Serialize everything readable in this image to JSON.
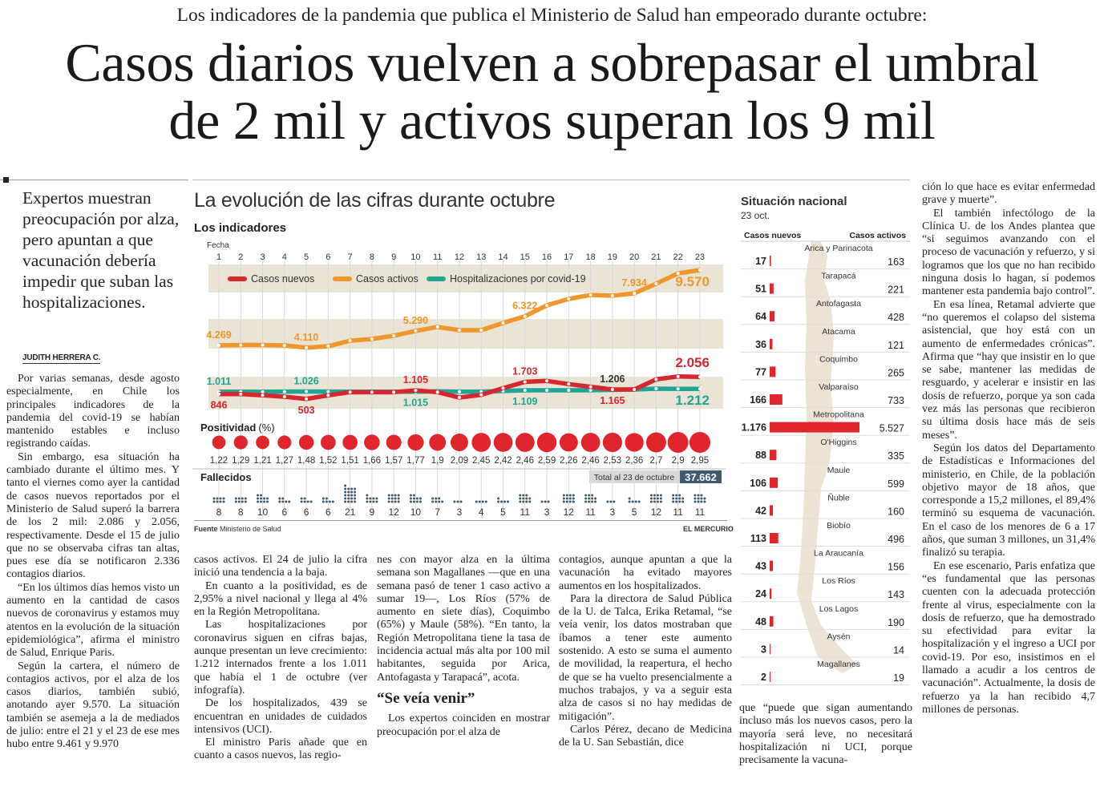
{
  "header": {
    "supertitle": "Los indicadores de la pandemia que publica el Ministerio de Salud han empeorado durante octubre:",
    "title_line1": "Casos diarios vuelven a sobrepasar el umbral",
    "title_line2": "de 2 mil y activos superan los 9 mil"
  },
  "deck": "Expertos muestran preocupación por alza, pero apuntan a que vacunación debería impedir que suban las hospitalizaciones.",
  "byline": "JUDITH HERRERA C.",
  "columns": [
    {
      "items": [
        {
          "type": "p",
          "text": "Por varias semanas, desde agosto especialmente, en Chile los principales indicadores de la pandemia del covid-19 se habían mantenido estables e incluso registrando caídas."
        },
        {
          "type": "p",
          "text": "Sin embargo, esa situación ha cambiado durante el último mes. Y tanto el viernes como ayer la cantidad de casos nuevos reportados por el Ministerio de Salud superó la barrera de los 2 mil: 2.086 y 2.056, respectivamente. Desde el 15 de julio que no se observaba cifras tan altas, pues ese día se notificaron 2.336 contagios diarios."
        },
        {
          "type": "p",
          "text": "“En los últimos días hemos visto un aumento en la cantidad de casos nuevos de coronavirus y estamos muy atentos en la evolución de la situación epidemiológica”, afirma el ministro de Salud, Enrique Paris."
        },
        {
          "type": "p",
          "text": "Según la cartera, el número de contagios activos, por el alza de los casos diarios, también subió, anotando ayer 9.570. La situación también se asemeja a la de mediados de julio: entre el 21 y el 23 de ese mes hubo entre 9.461 y 9.970"
        }
      ]
    },
    {
      "items": [
        {
          "type": "cont",
          "text": "casos activos. El 24 de julio la cifra inició una tendencia a la baja."
        },
        {
          "type": "p",
          "text": "En cuanto a la positividad, es de 2,95% a nivel nacional y llega al 4% en la Región Metropolitana."
        },
        {
          "type": "p",
          "text": "Las hospitalizaciones por coronavirus siguen en cifras bajas, aunque presentan un leve crecimiento: 1.212 internados frente a los 1.011 que había el 1 de octubre (ver infografía)."
        },
        {
          "type": "p",
          "text": "De los hospitalizados, 439 se encuentran en unidades de cuidados intensivos (UCI)."
        },
        {
          "type": "p",
          "text": "El ministro Paris añade que en cuanto a casos nuevos, las regio-"
        }
      ]
    },
    {
      "items": [
        {
          "type": "cont",
          "text": "nes con mayor alza en la última semana son Magallanes —que en una semana pasó de tener 1 caso activo a sumar 19—, Los Ríos (57% de aumento en siete días), Coquimbo (65%) y Maule (58%). “En tanto, la Región Metropolitana tiene la tasa de incidencia actual más alta por 100 mil habitantes, seguida por Arica, Antofagasta y Tarapacá”, acota."
        },
        {
          "type": "h",
          "text": "“Se veía venir”"
        },
        {
          "type": "p",
          "text": "Los expertos coinciden en mostrar preocupación por el alza de"
        }
      ]
    },
    {
      "items": [
        {
          "type": "cont",
          "text": "contagios, aunque apuntan a que la vacunación ha evitado mayores aumentos en los hospitalizados."
        },
        {
          "type": "p",
          "text": "Para la directora de Salud Pública de la U. de Talca, Erika Retamal, “se veía venir, los datos mostraban que íbamos a tener este aumento sostenido. A esto se suma el aumento de movilidad, la reapertura, el hecho de que se ha vuelto presencialmente a muchos trabajos, y va a seguir esta alza de casos si no hay medidas de mitigación”."
        },
        {
          "type": "p",
          "text": "Carlos Pérez, decano de Medicina de la U. San Sebastián, dice"
        }
      ]
    },
    {
      "items": [
        {
          "type": "cont",
          "text": "que “puede que sigan aumentando incluso más los nuevos casos, pero la mayoría será leve, no necesitará hospitalización ni UCI, porque precisamente la vacuna-"
        }
      ]
    },
    {
      "items": [
        {
          "type": "cont",
          "text": "ción lo que hace es evitar enfermedad grave y muerte”."
        },
        {
          "type": "p",
          "text": "El también infectólogo de la Clínica U. de los Andes plantea que “si seguimos avanzando con el proceso de vacunación y refuerzo, y si logramos que los que no han recibido ninguna dosis lo hagan, sí podemos mantener esta pandemia bajo control”."
        },
        {
          "type": "p",
          "text": "En esa línea, Retamal advierte que “no queremos el colapso del sistema asistencial, que hoy está con un aumento de enfermedades crónicas”. Afirma que “hay que insistir en lo que se sabe, mantener las medidas de resguardo, y acelerar e insistir en las dosis de refuerzo, porque ya son cada vez más las personas que recibieron su última dosis hace más de seis meses”."
        },
        {
          "type": "p",
          "text": "Según los datos del Departamento de Estadísticas e Informaciones del ministerio, en Chile, de la población objetivo mayor de 18 años, que corresponde a 15,2 millones, el 89,4% terminó su esquema de vacunación. En el caso de los menores de 6 a 17 años, que suman 3 millones, un 31,4% finalizó su terapia."
        },
        {
          "type": "p",
          "text": "En ese escenario, Paris enfatiza que “es fundamental que las personas cuenten con la adecuada protección frente al virus, especialmente con la dosis de refuerzo, que ha demostrado su efectividad para evitar la hospitalización y el ingreso a UCI por covid-19. Por eso, insistimos en el llamado a acudir a los centros de vacunación”. Actualmente, la dosis de refuerzo ya la han recibido 4,7 millones de personas."
        }
      ]
    }
  ],
  "chart_data": [
    {
      "type": "line",
      "title": "La evolución de las cifras durante octubre",
      "subtitle": "Los indicadores",
      "xlabel": "Fecha",
      "x": [
        1,
        2,
        3,
        4,
        5,
        6,
        7,
        8,
        9,
        10,
        11,
        12,
        13,
        14,
        15,
        16,
        17,
        18,
        19,
        20,
        21,
        22,
        23
      ],
      "legend_position": "top",
      "series": [
        {
          "name": "Casos nuevos",
          "color": "#d7262e",
          "values": [
            846,
            846,
            755,
            660,
            503,
            755,
            980,
            980,
            980,
            1105,
            980,
            600,
            790,
            1260,
            1703,
            1770,
            1545,
            1355,
            1165,
            1170,
            1880,
            2086,
            2056
          ]
        },
        {
          "name": "Casos activos",
          "color": "#f0962a",
          "values": [
            4269,
            4300,
            4300,
            4269,
            4110,
            4210,
            4600,
            4720,
            4950,
            5290,
            5570,
            5340,
            5340,
            5850,
            6322,
            7090,
            7540,
            7820,
            7770,
            7934,
            8610,
            9340,
            9570
          ]
        },
        {
          "name": "Hospitalizaciones por covid-19",
          "color": "#1ea594",
          "values": [
            1011,
            1010,
            1005,
            1020,
            1026,
            1020,
            1010,
            1010,
            1010,
            1015,
            1040,
            1015,
            1015,
            1060,
            1109,
            1110,
            1110,
            1115,
            1140,
            1165,
            1220,
            1210,
            1212
          ]
        }
      ],
      "annotations": [
        {
          "day": 1,
          "text": "4.269",
          "series": "Casos activos",
          "place": "above",
          "color": "#f0962a"
        },
        {
          "day": 5,
          "text": "4.110",
          "series": "Casos activos",
          "place": "above",
          "color": "#f0962a"
        },
        {
          "day": 10,
          "text": "5.290",
          "series": "Casos activos",
          "place": "above",
          "color": "#f0962a"
        },
        {
          "day": 15,
          "text": "6.322",
          "series": "Casos activos",
          "place": "above",
          "color": "#f0962a"
        },
        {
          "day": 20,
          "text": "7.934",
          "series": "Casos activos",
          "place": "above",
          "color": "#f0962a"
        },
        {
          "day": 23,
          "text": "9.570",
          "series": "Casos activos",
          "place": "below",
          "color": "#f0962a",
          "big": true
        },
        {
          "day": 1,
          "text": "1.011",
          "series": "Hospitalizaciones por covid-19",
          "place": "above",
          "color": "#1ea594"
        },
        {
          "day": 5,
          "text": "1.026",
          "series": "Hospitalizaciones por covid-19",
          "place": "above",
          "color": "#1ea594"
        },
        {
          "day": 10,
          "text": "1.015",
          "series": "Hospitalizaciones por covid-19",
          "place": "below",
          "color": "#1ea594"
        },
        {
          "day": 15,
          "text": "1.109",
          "series": "Hospitalizaciones por covid-19",
          "place": "below",
          "color": "#1ea594"
        },
        {
          "day": 23,
          "text": "1.212",
          "series": "Hospitalizaciones por covid-19",
          "place": "below",
          "color": "#1ea594",
          "big": true
        },
        {
          "day": 1,
          "text": "846",
          "series": "Casos nuevos",
          "place": "below",
          "color": "#d7262e"
        },
        {
          "day": 5,
          "text": "503",
          "series": "Casos nuevos",
          "place": "below",
          "color": "#d7262e"
        },
        {
          "day": 10,
          "text": "1.105",
          "series": "Casos nuevos",
          "place": "above",
          "color": "#d7262e"
        },
        {
          "day": 15,
          "text": "1.703",
          "series": "Casos nuevos",
          "place": "above",
          "color": "#d7262e"
        },
        {
          "day": 19,
          "text": "1.206",
          "series": "Casos nuevos",
          "place": "above",
          "color": "#333333"
        },
        {
          "day": 19,
          "text": "1.165",
          "series": "Casos nuevos",
          "place": "below",
          "color": "#d7262e"
        },
        {
          "day": 23,
          "text": "2.056",
          "series": "Casos nuevos",
          "place": "above",
          "color": "#d7262e",
          "big": true
        }
      ]
    },
    {
      "type": "bubble",
      "title": "Positividad",
      "unit": "(%)",
      "color": "#e0262c",
      "labels": [
        "1,22",
        "1,29",
        "1,21",
        "1,27",
        "1,48",
        "1,52",
        "1,51",
        "1,66",
        "1,57",
        "1,77",
        "1,9",
        "2,09",
        "2,45",
        "2,42",
        "2,46",
        "2,59",
        "2,26",
        "2,46",
        "2,53",
        "2,36",
        "2,7",
        "2,9",
        "2,95"
      ],
      "values": [
        1.22,
        1.29,
        1.21,
        1.27,
        1.48,
        1.52,
        1.51,
        1.66,
        1.57,
        1.77,
        1.9,
        2.09,
        2.45,
        2.42,
        2.46,
        2.59,
        2.26,
        2.46,
        2.53,
        2.36,
        2.7,
        2.9,
        2.95
      ]
    },
    {
      "type": "dot-count",
      "title": "Fallecidos",
      "color": "#3d5a6e",
      "values": [
        8,
        8,
        10,
        6,
        6,
        6,
        21,
        9,
        12,
        10,
        7,
        3,
        4,
        5,
        11,
        3,
        12,
        11,
        3,
        5,
        12,
        11,
        11
      ],
      "total_label": "Total al 23 de octubre",
      "total_value": "37.662"
    }
  ],
  "source_label": "Fuente",
  "source_text": "Ministerio de Salud",
  "brand": "EL MERCURIO",
  "national": {
    "title": "Situación nacional",
    "date": "23 oct.",
    "col_new": "Casos nuevos",
    "col_active": "Casos activos",
    "bar_color": "#e0262c",
    "regions": [
      {
        "name": "Arica y Parinacota",
        "new": 17,
        "new_label": "17",
        "active": "163"
      },
      {
        "name": "Tarapacá",
        "new": 51,
        "new_label": "51",
        "active": "221"
      },
      {
        "name": "Antofagasta",
        "new": 64,
        "new_label": "64",
        "active": "428"
      },
      {
        "name": "Atacama",
        "new": 36,
        "new_label": "36",
        "active": "121"
      },
      {
        "name": "Coquimbo",
        "new": 77,
        "new_label": "77",
        "active": "265"
      },
      {
        "name": "Valparaíso",
        "new": 166,
        "new_label": "166",
        "active": "733"
      },
      {
        "name": "Metropolitana",
        "new": 1176,
        "new_label": "1.176",
        "active": "5.527"
      },
      {
        "name": "O'Higgins",
        "new": 88,
        "new_label": "88",
        "active": "335"
      },
      {
        "name": "Maule",
        "new": 106,
        "new_label": "106",
        "active": "599"
      },
      {
        "name": "Ñuble",
        "new": 42,
        "new_label": "42",
        "active": "160"
      },
      {
        "name": "Biobío",
        "new": 113,
        "new_label": "113",
        "active": "496"
      },
      {
        "name": "La Araucanía",
        "new": 43,
        "new_label": "43",
        "active": "156"
      },
      {
        "name": "Los Ríos",
        "new": 24,
        "new_label": "24",
        "active": "143"
      },
      {
        "name": "Los Lagos",
        "new": 48,
        "new_label": "48",
        "active": "190"
      },
      {
        "name": "Aysén",
        "new": 3,
        "new_label": "3",
        "active": "14"
      },
      {
        "name": "Magallanes",
        "new": 2,
        "new_label": "2",
        "active": "19"
      }
    ]
  }
}
